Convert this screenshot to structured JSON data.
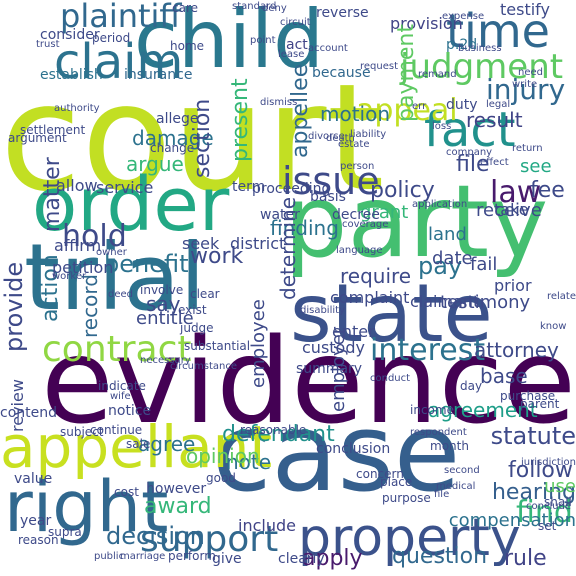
{
  "words": [
    {
      "text": "court",
      "color": "#c2df23",
      "rot": 0
    },
    {
      "text": "evidence",
      "color": "#440154",
      "rot": 0
    },
    {
      "text": "case",
      "color": "#355f8d",
      "rot": 0
    },
    {
      "text": "party",
      "color": "#44bf70",
      "rot": 0
    },
    {
      "text": "trial",
      "color": "#2c728e",
      "rot": 0
    },
    {
      "text": "child",
      "color": "#2a788e",
      "rot": 0
    },
    {
      "text": "state",
      "color": "#3b528b",
      "rot": 0
    },
    {
      "text": "order",
      "color": "#22a884",
      "rot": 0
    },
    {
      "text": "right",
      "color": "#31688e",
      "rot": 0
    },
    {
      "text": "appellant",
      "color": "#c8e020",
      "rot": 0
    },
    {
      "text": "property",
      "color": "#3b528b",
      "rot": 0
    },
    {
      "text": "claim",
      "color": "#2c728e",
      "rot": 0
    },
    {
      "text": "fact",
      "color": "#21918c",
      "rot": 0
    },
    {
      "text": "time",
      "color": "#31688e",
      "rot": 0
    },
    {
      "text": "issue",
      "color": "#3e4a89",
      "rot": 0
    },
    {
      "text": "contract",
      "color": "#90d743",
      "rot": 0
    },
    {
      "text": "support",
      "color": "#31688e",
      "rot": 0
    },
    {
      "text": "judgment",
      "color": "#5ec962",
      "rot": 0
    },
    {
      "text": "plaintiff",
      "color": "#31688e",
      "rot": 0
    },
    {
      "text": "appeal",
      "color": "#c2df23",
      "rot": 0
    },
    {
      "text": "hold",
      "color": "#3e4a89",
      "rot": 0
    },
    {
      "text": "law",
      "color": "#481a6c",
      "rot": 0
    },
    {
      "text": "injury",
      "color": "#31688e",
      "rot": 0
    },
    {
      "text": "interest",
      "color": "#2c728e",
      "rot": 0
    },
    {
      "text": "find",
      "color": "#35b779",
      "rot": 0
    },
    {
      "text": "decision",
      "color": "#31688e",
      "rot": 0
    },
    {
      "text": "statute",
      "color": "#3e4a89",
      "rot": 0
    },
    {
      "text": "agreement",
      "color": "#1f9e89",
      "rot": 0
    },
    {
      "text": "defendant",
      "color": "#21918c",
      "rot": 0
    },
    {
      "text": "rule",
      "color": "#414487",
      "rot": 0
    },
    {
      "text": "apply",
      "color": "#481a6c",
      "rot": 0
    },
    {
      "text": "question",
      "color": "#31688e",
      "rot": 0
    },
    {
      "text": "work",
      "color": "#3e4a89",
      "rot": 0
    },
    {
      "text": "pay",
      "color": "#2c728e",
      "rot": 0
    },
    {
      "text": "benefit",
      "color": "#2c728e",
      "rot": 0
    },
    {
      "text": "policy",
      "color": "#3e4a89",
      "rot": 0
    },
    {
      "text": "follow",
      "color": "#3e4a89",
      "rot": 0
    },
    {
      "text": "attorney",
      "color": "#3e4a89",
      "rot": 0
    },
    {
      "text": "hearing",
      "color": "#355f8d",
      "rot": 0
    },
    {
      "text": "award",
      "color": "#35b779",
      "rot": 0
    },
    {
      "text": "damage",
      "color": "#2c728e",
      "rot": 0
    },
    {
      "text": "argue",
      "color": "#35b779",
      "rot": 0
    },
    {
      "text": "motion",
      "color": "#2c728e",
      "rot": 0
    },
    {
      "text": "result",
      "color": "#414487",
      "rot": 0
    },
    {
      "text": "file",
      "color": "#3e4a89",
      "rot": 0
    },
    {
      "text": "see",
      "color": "#22a884",
      "rot": 0
    },
    {
      "text": "fee",
      "color": "#3e4a89",
      "rot": 0
    },
    {
      "text": "receive",
      "color": "#3e4a89",
      "rot": 0
    },
    {
      "text": "finding",
      "color": "#2c728e",
      "rot": 0
    },
    {
      "text": "require",
      "color": "#3e4a89",
      "rot": 0
    },
    {
      "text": "note",
      "color": "#2c728e",
      "rot": 0
    },
    {
      "text": "base",
      "color": "#3e4a89",
      "rot": 0
    },
    {
      "text": "opinion",
      "color": "#5ec962",
      "rot": 0
    },
    {
      "text": "agree",
      "color": "#2c728e",
      "rot": 0
    },
    {
      "text": "compensation",
      "color": "#2c728e",
      "rot": 0
    },
    {
      "text": "include",
      "color": "#414487",
      "rot": 0
    },
    {
      "text": "testify",
      "color": "#3e4a89",
      "rot": 0
    },
    {
      "text": "provision",
      "color": "#414487",
      "rot": 0
    },
    {
      "text": "consider",
      "color": "#3e4a89",
      "rot": 0
    },
    {
      "text": "establish",
      "color": "#2c728e",
      "rot": 0
    },
    {
      "text": "insurance",
      "color": "#31688e",
      "rot": 0
    },
    {
      "text": "because",
      "color": "#31688e",
      "rot": 0
    },
    {
      "text": "act",
      "color": "#414487",
      "rot": 0
    },
    {
      "text": "p.2d",
      "color": "#2c728e",
      "rot": 0
    },
    {
      "text": "duty",
      "color": "#3e4a89",
      "rot": 0
    },
    {
      "text": "section",
      "color": "#3e4a89",
      "rot": -90
    },
    {
      "text": "present",
      "color": "#35b779",
      "rot": -90
    },
    {
      "text": "appellee",
      "color": "#31688e",
      "rot": -90
    },
    {
      "text": "payment",
      "color": "#5ec962",
      "rot": -90
    },
    {
      "text": "matter",
      "color": "#3e4a89",
      "rot": -90
    },
    {
      "text": "action",
      "color": "#2c728e",
      "rot": -90
    },
    {
      "text": "provide",
      "color": "#3e4a89",
      "rot": -90
    },
    {
      "text": "record",
      "color": "#31688e",
      "rot": -90
    },
    {
      "text": "determine",
      "color": "#3e4a89",
      "rot": -90
    },
    {
      "text": "employee",
      "color": "#3e4a89",
      "rot": -90
    },
    {
      "text": "employer",
      "color": "#3e4a89",
      "rot": -90
    },
    {
      "text": "review",
      "color": "#3e4a89",
      "rot": -90
    },
    {
      "text": "use",
      "color": "#5ec962",
      "rot": 0
    },
    {
      "text": "district",
      "color": "#3e4a89",
      "rot": 0
    },
    {
      "text": "land",
      "color": "#2c728e",
      "rot": 0
    },
    {
      "text": "date",
      "color": "#3e4a89",
      "rot": 0
    },
    {
      "text": "fail",
      "color": "#3e4a89",
      "rot": 0
    },
    {
      "text": "grant",
      "color": "#35b779",
      "rot": 0
    },
    {
      "text": "term",
      "color": "#3e4a89",
      "rot": 0
    },
    {
      "text": "seek",
      "color": "#3e4a89",
      "rot": 0
    },
    {
      "text": "allow",
      "color": "#3e4a89",
      "rot": 0
    },
    {
      "text": "service",
      "color": "#3e4a89",
      "rot": 0
    },
    {
      "text": "affirm",
      "color": "#3e4a89",
      "rot": 0
    },
    {
      "text": "petition",
      "color": "#3e4a89",
      "rot": 0
    },
    {
      "text": "say",
      "color": "#3e4a89",
      "rot": 0
    },
    {
      "text": "entitle",
      "color": "#3e4a89",
      "rot": 0
    },
    {
      "text": "custody",
      "color": "#3e4a89",
      "rot": 0
    },
    {
      "text": "enter",
      "color": "#3e4a89",
      "rot": 0
    },
    {
      "text": "complaint",
      "color": "#3e4a89",
      "rot": 0
    },
    {
      "text": "claimant",
      "color": "#3e4a89",
      "rot": 0
    },
    {
      "text": "testimony",
      "color": "#3e4a89",
      "rot": 0
    },
    {
      "text": "prior",
      "color": "#3e4a89",
      "rot": 0
    },
    {
      "text": "take",
      "color": "#3e4a89",
      "rot": 0
    },
    {
      "text": "proceeding",
      "color": "#3e4a89",
      "rot": 0
    },
    {
      "text": "decree",
      "color": "#3e4a89",
      "rot": 0
    },
    {
      "text": "water",
      "color": "#3e4a89",
      "rot": 0
    },
    {
      "text": "basis",
      "color": "#3e4a89",
      "rot": 0
    },
    {
      "text": "allege",
      "color": "#3e4a89",
      "rot": 0
    },
    {
      "text": "change",
      "color": "#3e4a89",
      "rot": 0
    },
    {
      "text": "settlement",
      "color": "#3e4a89",
      "rot": 0
    },
    {
      "text": "argument",
      "color": "#3e4a89",
      "rot": 0
    },
    {
      "text": "value",
      "color": "#3e4a89",
      "rot": 0
    },
    {
      "text": "cost",
      "color": "#3e4a89",
      "rot": 0
    },
    {
      "text": "however",
      "color": "#3e4a89",
      "rot": 0
    },
    {
      "text": "good",
      "color": "#3e4a89",
      "rot": 0
    },
    {
      "text": "conclusion",
      "color": "#3e4a89",
      "rot": 0
    },
    {
      "text": "summary",
      "color": "#3e4a89",
      "rot": 0
    },
    {
      "text": "reasonable",
      "color": "#3e4a89",
      "rot": 0
    },
    {
      "text": "notice",
      "color": "#3e4a89",
      "rot": 0
    },
    {
      "text": "sale",
      "color": "#3e4a89",
      "rot": 0
    },
    {
      "text": "continue",
      "color": "#3e4a89",
      "rot": 0
    },
    {
      "text": "subject",
      "color": "#3e4a89",
      "rot": 0
    },
    {
      "text": "substantial",
      "color": "#3e4a89",
      "rot": 0
    },
    {
      "text": "clear",
      "color": "#3e4a89",
      "rot": 0
    },
    {
      "text": "judge",
      "color": "#3e4a89",
      "rot": 0
    },
    {
      "text": "involve",
      "color": "#3e4a89",
      "rot": 0
    },
    {
      "text": "exist",
      "color": "#3e4a89",
      "rot": 0
    },
    {
      "text": "parent",
      "color": "#3e4a89",
      "rot": 0
    },
    {
      "text": "purchase",
      "color": "#3e4a89",
      "rot": 0
    },
    {
      "text": "month",
      "color": "#3e4a89",
      "rot": 0
    },
    {
      "text": "income",
      "color": "#3e4a89",
      "rot": 0
    },
    {
      "text": "concern",
      "color": "#3e4a89",
      "rot": 0
    },
    {
      "text": "place",
      "color": "#3e4a89",
      "rot": 0
    },
    {
      "text": "purpose",
      "color": "#3e4a89",
      "rot": 0
    },
    {
      "text": "conclude",
      "color": "#3e4a89",
      "rot": 0
    },
    {
      "text": "shall",
      "color": "#3e4a89",
      "rot": 0
    },
    {
      "text": "set",
      "color": "#3e4a89",
      "rot": 0
    },
    {
      "text": "give",
      "color": "#3e4a89",
      "rot": 0
    },
    {
      "text": "clearly",
      "color": "#3e4a89",
      "rot": 0
    },
    {
      "text": "perform",
      "color": "#3e4a89",
      "rot": 0
    },
    {
      "text": "marriage",
      "color": "#3e4a89",
      "rot": 0
    },
    {
      "text": "public",
      "color": "#3e4a89",
      "rot": 0
    },
    {
      "text": "supra",
      "color": "#3e4a89",
      "rot": 0
    },
    {
      "text": "year",
      "color": "#3e4a89",
      "rot": 0
    },
    {
      "text": "reason",
      "color": "#3e4a89",
      "rot": 0
    },
    {
      "text": "contend",
      "color": "#3e4a89",
      "rot": 0
    },
    {
      "text": "care",
      "color": "#3e4a89",
      "rot": 0
    },
    {
      "text": "standard",
      "color": "#3e4a89",
      "rot": 0
    },
    {
      "text": "deny",
      "color": "#3e4a89",
      "rot": 0
    },
    {
      "text": "circuit",
      "color": "#3e4a89",
      "rot": 0
    },
    {
      "text": "reverse",
      "color": "#3e4a89",
      "rot": 0
    },
    {
      "text": "expense",
      "color": "#3e4a89",
      "rot": 0
    },
    {
      "text": "period",
      "color": "#3e4a89",
      "rot": 0
    },
    {
      "text": "trust",
      "color": "#3e4a89",
      "rot": 0
    },
    {
      "text": "home",
      "color": "#3e4a89",
      "rot": 0
    },
    {
      "text": "point",
      "color": "#3e4a89",
      "rot": 0
    },
    {
      "text": "lease",
      "color": "#3e4a89",
      "rot": 0
    },
    {
      "text": "request",
      "color": "#3e4a89",
      "rot": 0
    },
    {
      "text": "remand",
      "color": "#3e4a89",
      "rot": 0
    },
    {
      "text": "need",
      "color": "#3e4a89",
      "rot": 0
    },
    {
      "text": "write",
      "color": "#3e4a89",
      "rot": 0
    },
    {
      "text": "legal",
      "color": "#3e4a89",
      "rot": 0
    },
    {
      "text": "loss",
      "color": "#3e4a89",
      "rot": 0
    },
    {
      "text": "company",
      "color": "#3e4a89",
      "rot": 0
    },
    {
      "text": "effect",
      "color": "#3e4a89",
      "rot": 0
    },
    {
      "text": "return",
      "color": "#3e4a89",
      "rot": 0
    },
    {
      "text": "divorce",
      "color": "#3e4a89",
      "rot": 0
    },
    {
      "text": "liability",
      "color": "#3e4a89",
      "rot": 0
    },
    {
      "text": "death",
      "color": "#3e4a89",
      "rot": 0
    },
    {
      "text": "person",
      "color": "#3e4a89",
      "rot": 0
    },
    {
      "text": "estate",
      "color": "#3e4a89",
      "rot": 0
    },
    {
      "text": "coverage",
      "color": "#3e4a89",
      "rot": 0
    },
    {
      "text": "owner",
      "color": "#3e4a89",
      "rot": 0
    },
    {
      "text": "worker",
      "color": "#3e4a89",
      "rot": 0
    },
    {
      "text": "authority",
      "color": "#3e4a89",
      "rot": 0
    },
    {
      "text": "application",
      "color": "#3e4a89",
      "rot": 0
    },
    {
      "text": "language",
      "color": "#3e4a89",
      "rot": 0
    },
    {
      "text": "disability",
      "color": "#3e4a89",
      "rot": 0
    },
    {
      "text": "relate",
      "color": "#3e4a89",
      "rot": 0
    },
    {
      "text": "know",
      "color": "#3e4a89",
      "rot": 0
    },
    {
      "text": "day",
      "color": "#3e4a89",
      "rot": 0
    },
    {
      "text": "conduct",
      "color": "#3e4a89",
      "rot": 0
    },
    {
      "text": "circumstance",
      "color": "#3e4a89",
      "rot": 0
    },
    {
      "text": "necessary",
      "color": "#3e4a89",
      "rot": 0
    },
    {
      "text": "indicate",
      "color": "#3e4a89",
      "rot": 0
    },
    {
      "text": "wife",
      "color": "#3e4a89",
      "rot": 0
    },
    {
      "text": "deed",
      "color": "#3e4a89",
      "rot": 0
    },
    {
      "text": "jurisdiction",
      "color": "#3e4a89",
      "rot": 0
    },
    {
      "text": "second",
      "color": "#3e4a89",
      "rot": 0
    },
    {
      "text": "file",
      "color": "#3e4a89",
      "rot": 0
    },
    {
      "text": "medical",
      "color": "#3e4a89",
      "rot": 0
    },
    {
      "text": "respondent",
      "color": "#3e4a89",
      "rot": 0
    },
    {
      "text": "business",
      "color": "#3e4a89",
      "rot": 0
    },
    {
      "text": "dismiss",
      "color": "#3e4a89",
      "rot": 0
    },
    {
      "text": "err",
      "color": "#3e4a89",
      "rot": 0
    },
    {
      "text": "account",
      "color": "#3e4a89",
      "rot": 0
    },
    {
      "text": "employment",
      "color": "#3e4a89",
      "rot": 0
    },
    {
      "text": "condition",
      "color": "#3e4a89",
      "rot": 0
    },
    {
      "text": "there",
      "color": "#3e4a89",
      "rot": 0
    }
  ]
}
